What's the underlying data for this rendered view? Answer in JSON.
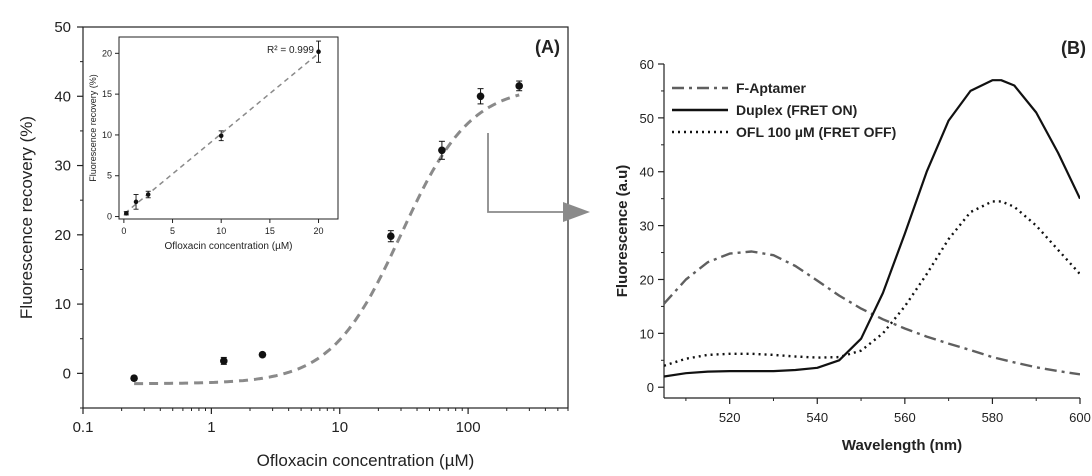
{
  "chart_data": [
    {
      "id": "A",
      "type": "scatter",
      "panel_label": "(A)",
      "xlabel": "Ofloxacin concentration (µM)",
      "ylabel": "Fluorescence recovery (%)",
      "xscale": "log",
      "xlim": [
        0.1,
        600
      ],
      "ylim": [
        -5,
        50
      ],
      "xticks": [
        0.1,
        1,
        10,
        100
      ],
      "xtick_labels": [
        "0.1",
        "1",
        "10",
        "100"
      ],
      "yticks": [
        0,
        10,
        20,
        30,
        40,
        50
      ],
      "ytick_labels": [
        "0",
        "10",
        "20",
        "30",
        "40",
        "50"
      ],
      "points": [
        {
          "x": 0.25,
          "y": -0.7,
          "err": 0.3
        },
        {
          "x": 1.25,
          "y": 1.8,
          "err": 0.5
        },
        {
          "x": 2.5,
          "y": 2.7,
          "err": 0.3
        },
        {
          "x": 25,
          "y": 19.8,
          "err": 0.8
        },
        {
          "x": 62.5,
          "y": 32.2,
          "err": 1.3
        },
        {
          "x": 125,
          "y": 40.0,
          "err": 1.1
        },
        {
          "x": 250,
          "y": 41.5,
          "err": 0.7
        }
      ],
      "fit": {
        "style": "dashed",
        "color": "#8a8a8a",
        "bottom": -1.5,
        "top": 41.6,
        "ec50": 30,
        "hill": 1.6
      },
      "annotation_arrow": true
    },
    {
      "id": "A-inset",
      "type": "scatter",
      "xlabel": "Ofloxacin concentration (µM)",
      "ylabel": "Fluorescence recovery (%)",
      "xlim": [
        -0.5,
        22
      ],
      "ylim": [
        -0.3,
        22
      ],
      "xticks": [
        0,
        5,
        10,
        15,
        20
      ],
      "xtick_labels": [
        "0",
        "5",
        "10",
        "15",
        "20"
      ],
      "yticks": [
        0,
        5,
        10,
        15,
        20
      ],
      "ytick_labels": [
        "0",
        "5",
        "10",
        "15",
        "20"
      ],
      "annotation": "R² = 0.999",
      "points": [
        {
          "x": 0.25,
          "y": 0.4,
          "err": 0.2
        },
        {
          "x": 1.25,
          "y": 1.8,
          "err": 0.9
        },
        {
          "x": 2.5,
          "y": 2.7,
          "err": 0.4
        },
        {
          "x": 10,
          "y": 9.9,
          "err": 0.6
        },
        {
          "x": 20,
          "y": 20.2,
          "err": 1.3
        }
      ],
      "fit": {
        "style": "dashed",
        "color": "#8a8a8a",
        "x": [
          0.1,
          20
        ],
        "y": [
          0.4,
          20.0
        ]
      }
    },
    {
      "id": "B",
      "type": "line",
      "panel_label": "(B)",
      "xlabel": "Wavelength (nm)",
      "ylabel": "Fluorescence (a.u)",
      "xlim": [
        505,
        600
      ],
      "ylim": [
        -2,
        60
      ],
      "xticks": [
        520,
        540,
        560,
        580,
        600
      ],
      "xtick_labels": [
        "520",
        "540",
        "560",
        "580",
        "600"
      ],
      "yticks": [
        0,
        10,
        20,
        30,
        40,
        50,
        60
      ],
      "ytick_labels": [
        "0",
        "10",
        "20",
        "30",
        "40",
        "50",
        "60"
      ],
      "legend_position": "top-left",
      "series": [
        {
          "name": "F-Aptamer",
          "style": "dashdot",
          "color": "#5f5f5f",
          "x": [
            505,
            510,
            515,
            520,
            525,
            530,
            535,
            540,
            545,
            550,
            555,
            560,
            565,
            570,
            575,
            580,
            585,
            590,
            595,
            600
          ],
          "values": [
            15.5,
            20.0,
            23.2,
            24.8,
            25.2,
            24.5,
            22.5,
            19.8,
            17.0,
            14.6,
            12.6,
            10.9,
            9.4,
            8.1,
            6.9,
            5.6,
            4.6,
            3.7,
            3.0,
            2.4
          ]
        },
        {
          "name": "Duplex (FRET ON)",
          "style": "solid",
          "color": "#111111",
          "x": [
            505,
            510,
            515,
            520,
            525,
            530,
            535,
            540,
            545,
            550,
            555,
            560,
            565,
            570,
            575,
            580,
            582,
            585,
            590,
            595,
            600
          ],
          "values": [
            2.0,
            2.6,
            2.9,
            3.0,
            3.0,
            3.0,
            3.2,
            3.6,
            5.0,
            9.0,
            17.5,
            28.5,
            40.0,
            49.5,
            55.0,
            57.0,
            57.0,
            56.0,
            51.0,
            43.5,
            35.0
          ]
        },
        {
          "name": "OFL 100 µM (FRET OFF)",
          "style": "dotted",
          "color": "#111111",
          "x": [
            505,
            510,
            515,
            520,
            525,
            530,
            535,
            540,
            545,
            550,
            555,
            560,
            565,
            570,
            575,
            580,
            582,
            585,
            590,
            595,
            600
          ],
          "values": [
            4.0,
            5.3,
            6.0,
            6.2,
            6.2,
            6.0,
            5.7,
            5.5,
            5.6,
            6.8,
            10.0,
            15.0,
            21.0,
            27.5,
            32.5,
            34.5,
            34.5,
            33.5,
            30.0,
            25.5,
            21.0
          ]
        }
      ]
    }
  ]
}
